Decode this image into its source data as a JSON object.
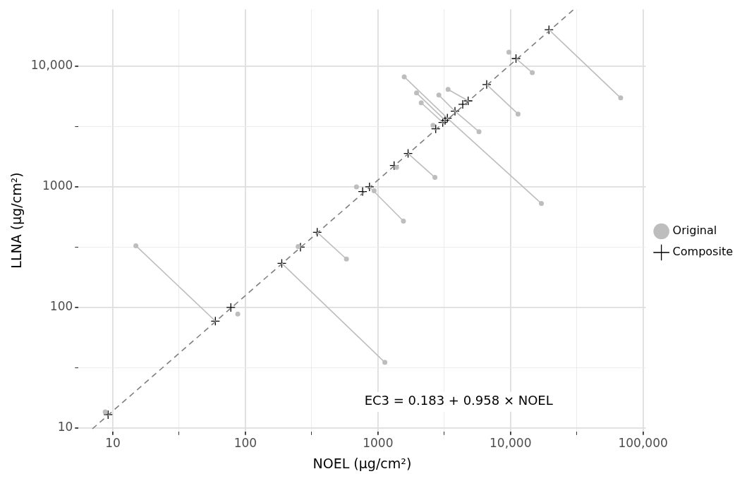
{
  "chart_data": {
    "type": "scatter",
    "xlabel": "NOEL (µg/cm²)",
    "ylabel": "LLNA (µg/cm²)",
    "log": "xy",
    "grid": true,
    "legend": "right",
    "xlim": [
      5.5,
      105000
    ],
    "ylim": [
      9.35,
      29700
    ],
    "xticks": [
      10,
      {
        "value": 31.6,
        "label": null
      },
      100,
      {
        "value": 316,
        "label": null
      },
      1000,
      {
        "value": 3162,
        "label": null
      },
      {
        "value": 10000,
        "label": "10,000"
      },
      {
        "value": 31623,
        "label": null
      },
      {
        "value": 100000,
        "label": "100,000"
      }
    ],
    "yticks": [
      10,
      {
        "value": 31.6,
        "label": null
      },
      100,
      {
        "value": 316,
        "label": null
      },
      1000,
      {
        "value": 3162,
        "label": null
      },
      {
        "value": 10000,
        "label": "10,000"
      }
    ],
    "annotations": [
      "EC3 = 0.183 + 0.958 × NOEL"
    ],
    "series": [
      {
        "type": "line",
        "color": "#bdbdbd",
        "marker": "none",
        "x": [
          14.9,
          59.3
        ],
        "values": [
          325,
          77
        ]
      },
      {
        "type": "line",
        "color": "#bdbdbd",
        "marker": "none",
        "x": [
          1127,
          188
        ],
        "values": [
          35,
          232
        ]
      },
      {
        "type": "line",
        "color": "#bdbdbd",
        "marker": "none",
        "x": [
          578,
          348
        ],
        "values": [
          252,
          420
        ]
      },
      {
        "type": "line",
        "color": "#bdbdbd",
        "marker": "none",
        "x": [
          1556,
          863
        ],
        "values": [
          520,
          1000
        ]
      },
      {
        "type": "line",
        "color": "#bdbdbd",
        "marker": "none",
        "x": [
          2690,
          1687
        ],
        "values": [
          1197,
          1893
        ]
      },
      {
        "type": "line",
        "color": "#bdbdbd",
        "marker": "none",
        "x": [
          1578,
          3340
        ],
        "values": [
          8180,
          3710
        ]
      },
      {
        "type": "line",
        "color": "#bdbdbd",
        "marker": "none",
        "x": [
          3340,
          17100
        ],
        "values": [
          3710,
          728
        ]
      },
      {
        "type": "line",
        "color": "#bdbdbd",
        "marker": "none",
        "x": [
          1954,
          3210
        ],
        "values": [
          6010,
          3560
        ]
      },
      {
        "type": "line",
        "color": "#bdbdbd",
        "marker": "none",
        "x": [
          2120,
          3080
        ],
        "values": [
          4980,
          3420
        ]
      },
      {
        "type": "line",
        "color": "#bdbdbd",
        "marker": "none",
        "x": [
          2880,
          3810
        ],
        "values": [
          5770,
          4240
        ]
      },
      {
        "type": "line",
        "color": "#bdbdbd",
        "marker": "none",
        "x": [
          3810,
          5780
        ],
        "values": [
          4240,
          2870
        ]
      },
      {
        "type": "line",
        "color": "#bdbdbd",
        "marker": "none",
        "x": [
          3380,
          4790
        ],
        "values": [
          6430,
          5170
        ]
      },
      {
        "type": "line",
        "color": "#bdbdbd",
        "marker": "none",
        "x": [
          11000,
          14600
        ],
        "values": [
          11600,
          8870
        ]
      },
      {
        "type": "line",
        "color": "#bdbdbd",
        "marker": "none",
        "x": [
          6610,
          11400
        ],
        "values": [
          7060,
          4020
        ]
      },
      {
        "type": "line",
        "color": "#bdbdbd",
        "marker": "none",
        "x": [
          19500,
          67800
        ],
        "values": [
          20100,
          5470
        ]
      },
      {
        "type": "line",
        "color": "#7f7f7f",
        "marker": "none",
        "line_style": "dashed",
        "x": [
          7,
          30000
        ],
        "values": [
          9.84,
          29600
        ]
      },
      {
        "name": "Original",
        "type": "scatter",
        "color": "#bdbdbd",
        "marker": "circle",
        "x": [
          8.75,
          14.9,
          87.5,
          1127,
          250,
          578,
          688,
          935,
          1556,
          1380,
          2690,
          2600,
          1578,
          17100,
          1954,
          2120,
          2880,
          5780,
          3380,
          9730,
          14600,
          11400,
          67800
        ],
        "values": [
          13.6,
          325,
          88,
          35,
          320,
          252,
          1000,
          927,
          520,
          1450,
          1197,
          3240,
          8180,
          728,
          6010,
          4980,
          5770,
          2870,
          6430,
          13100,
          8870,
          4020,
          5470
        ]
      },
      {
        "name": "Composite",
        "type": "scatter",
        "color": "#000000",
        "marker": "cross",
        "x": [
          9.2,
          59.3,
          77.6,
          188,
          260,
          348,
          766,
          863,
          1324,
          1687,
          2727,
          3080,
          3210,
          3340,
          3810,
          4360,
          4790,
          6610,
          11000,
          19500
        ],
        "values": [
          12.9,
          77,
          100,
          232,
          316,
          420,
          914,
          1000,
          1503,
          1893,
          3030,
          3420,
          3560,
          3710,
          4240,
          4840,
          5170,
          7060,
          11600,
          20100
        ]
      }
    ]
  }
}
